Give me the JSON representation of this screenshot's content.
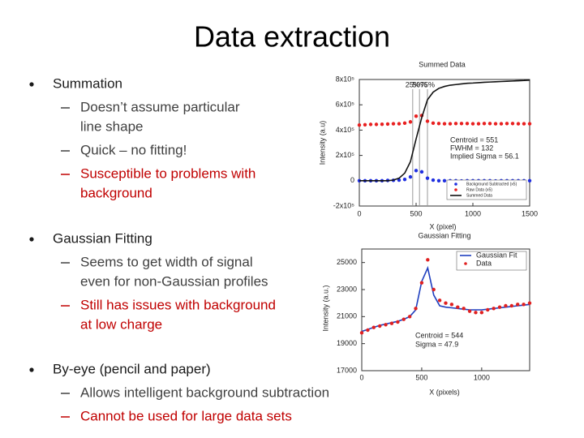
{
  "title": "Data extraction",
  "sections": [
    {
      "text": "Summation",
      "color": "#1a1a1a",
      "items": [
        {
          "lines": [
            "Doesn’t assume particular",
            "line shape"
          ],
          "color": "#404040"
        },
        {
          "lines": [
            "Quick – no fitting!"
          ],
          "color": "#404040"
        },
        {
          "lines": [
            "Susceptible to problems with",
            "background"
          ],
          "color": "#c00000"
        }
      ]
    },
    {
      "text": "Gaussian Fitting",
      "color": "#1a1a1a",
      "items": [
        {
          "lines": [
            "Seems to get width of signal",
            "even for non-Gaussian profiles"
          ],
          "color": "#404040"
        },
        {
          "lines": [
            "Still has issues with background",
            "at low charge"
          ],
          "color": "#c00000"
        }
      ]
    },
    {
      "text": "By-eye (pencil and paper)",
      "color": "#1a1a1a",
      "items": [
        {
          "lines": [
            "Allows intelligent background subtraction"
          ],
          "color": "#404040"
        },
        {
          "lines": [
            "Cannot be used for large data sets"
          ],
          "color": "#c00000"
        }
      ]
    }
  ],
  "chart_data": [
    {
      "type": "line",
      "title": "Summed Data",
      "x_label": "X (pixel)",
      "y_label": "Intensity (a.u)",
      "xlim": [
        0,
        1500
      ],
      "xticks": [
        0,
        500,
        1000,
        1500
      ],
      "ylim": [
        -200000,
        800000
      ],
      "yticks": [
        {
          "value": 800000,
          "label": "8x10⁵"
        },
        {
          "value": 600000,
          "label": "6x10⁵"
        },
        {
          "value": 400000,
          "label": "4x10⁵"
        },
        {
          "value": 200000,
          "label": "2x10⁵"
        },
        0,
        {
          "value": -200000,
          "label": "-2x10⁵"
        }
      ],
      "x": [
        0,
        50,
        100,
        150,
        200,
        250,
        300,
        350,
        400,
        450,
        500,
        550,
        600,
        650,
        700,
        750,
        800,
        850,
        900,
        950,
        1000,
        1050,
        1100,
        1150,
        1200,
        1250,
        1300,
        1350,
        1400,
        1450,
        1500
      ],
      "series": [
        {
          "name": "Background Subtracted (x5)",
          "color": "#1f2fe0",
          "style": "points",
          "values": [
            0,
            0,
            0,
            0,
            0,
            2000,
            3000,
            5000,
            10000,
            30000,
            80000,
            70000,
            20000,
            5000,
            0,
            0,
            0,
            0,
            -2000,
            0,
            0,
            0,
            0,
            0,
            -2000,
            0,
            0,
            0,
            0,
            0,
            0
          ]
        },
        {
          "name": "Raw Data (x5)",
          "color": "#e82020",
          "style": "points",
          "values": [
            440000,
            442000,
            445000,
            445000,
            446000,
            448000,
            450000,
            450000,
            455000,
            465000,
            510000,
            515000,
            470000,
            455000,
            452000,
            450000,
            450000,
            452000,
            452000,
            452000,
            450000,
            450000,
            452000,
            452000,
            450000,
            450000,
            452000,
            452000,
            450000,
            450000,
            450000
          ]
        },
        {
          "name": "Summed Data",
          "color": "#111111",
          "style": "line",
          "values": [
            0,
            0,
            0,
            0,
            0,
            0,
            5000,
            20000,
            60000,
            150000,
            330000,
            500000,
            640000,
            700000,
            730000,
            745000,
            755000,
            760000,
            765000,
            770000,
            772000,
            775000,
            778000,
            780000,
            782000,
            784000,
            786000,
            788000,
            790000,
            792000,
            795000
          ]
        }
      ],
      "marker_lines": [
        {
          "label": "25%",
          "x": 470
        },
        {
          "label": "50%",
          "x": 530
        },
        {
          "label": "75%",
          "x": 600
        }
      ],
      "annotations": [
        "Centroid = 551",
        "FWHM = 132",
        "Implied Sigma = 56.1"
      ]
    },
    {
      "type": "line",
      "title": "Gaussian Fitting",
      "x_label": "X (pixels)",
      "y_label": "Intensity (a.u.)",
      "xlim": [
        0,
        1400
      ],
      "xticks": [
        0,
        500,
        1000
      ],
      "ylim": [
        17000,
        26000
      ],
      "yticks": [
        25000,
        23000,
        21000,
        19000,
        17000
      ],
      "x": [
        0,
        50,
        100,
        150,
        200,
        250,
        300,
        350,
        400,
        450,
        500,
        550,
        600,
        650,
        700,
        750,
        800,
        850,
        900,
        950,
        1000,
        1050,
        1100,
        1150,
        1200,
        1250,
        1300,
        1350,
        1400
      ],
      "series": [
        {
          "name": "Gaussian Fit",
          "color": "#1f3fbf",
          "style": "line",
          "values": [
            19900,
            20050,
            20200,
            20350,
            20450,
            20550,
            20650,
            20800,
            21000,
            21500,
            23600,
            24600,
            22600,
            21800,
            21700,
            21650,
            21600,
            21550,
            21500,
            21500,
            21500,
            21550,
            21600,
            21650,
            21700,
            21750,
            21800,
            21850,
            21900
          ]
        },
        {
          "name": "Data",
          "color": "#e02020",
          "style": "points",
          "values": [
            19800,
            20000,
            20200,
            20300,
            20400,
            20500,
            20600,
            20800,
            21000,
            21600,
            23500,
            25200,
            23000,
            22200,
            22000,
            21900,
            21700,
            21600,
            21400,
            21300,
            21300,
            21500,
            21600,
            21700,
            21800,
            21800,
            21900,
            21900,
            22000
          ]
        }
      ],
      "annotations": [
        "Centroid = 544",
        "Sigma = 47.9"
      ]
    }
  ]
}
